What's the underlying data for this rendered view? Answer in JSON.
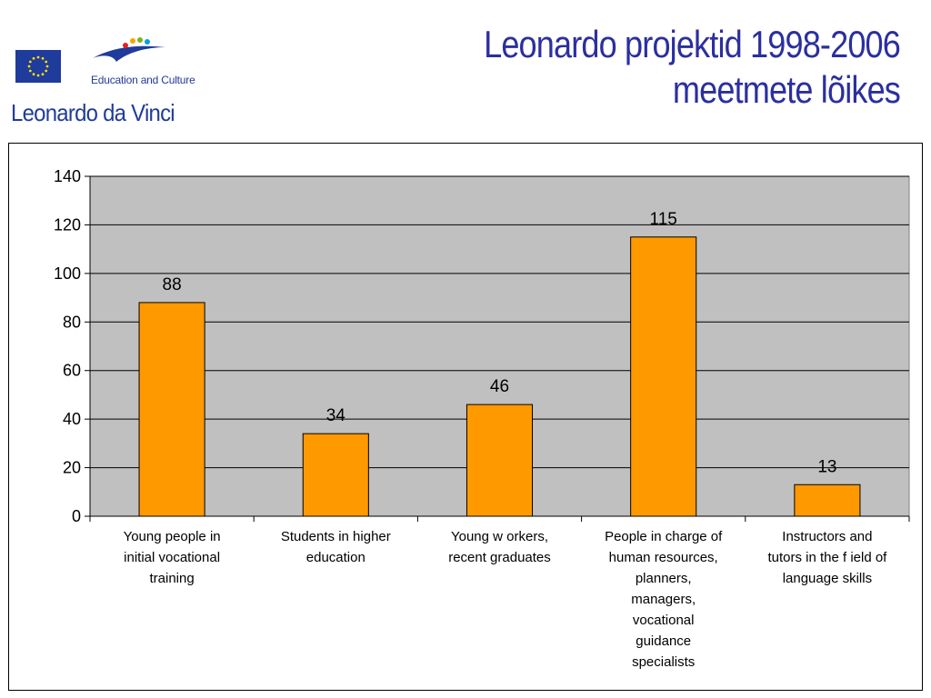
{
  "header": {
    "brand_top": "Education and Culture",
    "brand_program": "Leonardo da Vinci",
    "title_line1": "Leonardo projektid 1998-2006",
    "title_line2": "meetmete lõikes",
    "eu_flag_color": "#1f3b9b",
    "title_color": "#2b2f9e"
  },
  "chart_data": {
    "type": "bar",
    "categories": [
      [
        "Young people in",
        "initial vocational",
        "training"
      ],
      [
        "Students in higher",
        "education"
      ],
      [
        "Young w orkers,",
        "recent graduates"
      ],
      [
        "People in charge of",
        "human resources,",
        "planners,",
        "managers,",
        "vocational",
        "guidance",
        "specialists"
      ],
      [
        "Instructors and",
        "tutors in the f ield of",
        "language skills"
      ]
    ],
    "values": [
      88,
      34,
      46,
      115,
      13
    ],
    "ylim": [
      0,
      140
    ],
    "yticks": [
      0,
      20,
      40,
      60,
      80,
      100,
      120,
      140
    ],
    "grid": true,
    "legend": "none",
    "bar_color": "#ff9900",
    "plot_background": "#c0c0c0"
  }
}
